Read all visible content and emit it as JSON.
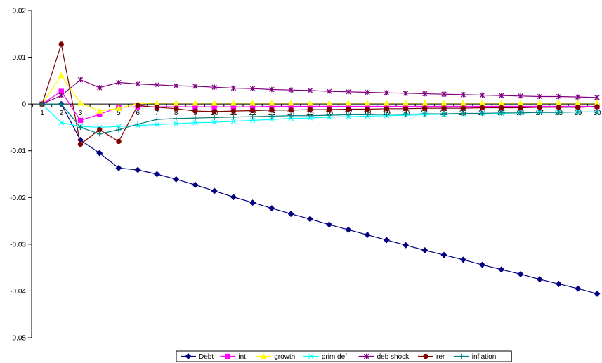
{
  "chart_data": {
    "type": "line",
    "title": "",
    "xlabel": "",
    "ylabel": "",
    "x": [
      1,
      2,
      3,
      4,
      5,
      6,
      7,
      8,
      9,
      10,
      11,
      12,
      13,
      14,
      15,
      16,
      17,
      18,
      19,
      20,
      21,
      22,
      23,
      24,
      25,
      26,
      27,
      28,
      29,
      30
    ],
    "ylim": [
      -0.05,
      0.02
    ],
    "yticks": [
      0.02,
      0.01,
      0,
      -0.01,
      -0.02,
      -0.03,
      -0.04,
      -0.05
    ],
    "ytick_labels": [
      "0.02",
      "0.01",
      "0",
      "-0.01",
      "-0.02",
      "-0.03",
      "-0.04",
      "-0.05"
    ],
    "grid": false,
    "legend_position": "bottom-center",
    "series": [
      {
        "name": "Debt",
        "color": "#000080",
        "marker": "diamond",
        "values": [
          0,
          0,
          -0.0077,
          -0.0105,
          -0.0137,
          -0.0141,
          -0.015,
          -0.0161,
          -0.0173,
          -0.0186,
          -0.0199,
          -0.0211,
          -0.0223,
          -0.0235,
          -0.0246,
          -0.0258,
          -0.0269,
          -0.028,
          -0.0291,
          -0.0302,
          -0.0313,
          -0.0323,
          -0.0333,
          -0.0344,
          -0.0354,
          -0.0364,
          -0.0375,
          -0.0385,
          -0.0395,
          -0.0406
        ]
      },
      {
        "name": "int",
        "color": "#ff00ff",
        "marker": "square",
        "values": [
          0,
          0.0027,
          -0.0035,
          -0.0022,
          -0.0007,
          -0.0006,
          -0.0006,
          -0.0006,
          -0.0006,
          -0.0006,
          -0.0006,
          -0.0006,
          -0.0005,
          -0.0005,
          -0.0005,
          -0.0005,
          -0.0005,
          -0.0005,
          -0.0005,
          -0.0005,
          -0.0005,
          -0.0005,
          -0.0005,
          -0.0005,
          -0.0005,
          -0.0005,
          -0.0005,
          -0.0005,
          -0.0005,
          -0.0005
        ]
      },
      {
        "name": "growth",
        "color": "#ffff00",
        "marker": "triangle",
        "values": [
          0,
          0.0061,
          0.0002,
          -0.0015,
          -0.0009,
          0.0001,
          0.0002,
          0.0002,
          0.0002,
          0.0002,
          0.0002,
          0.0002,
          0.0002,
          0.0002,
          0.0002,
          0.0002,
          0.0002,
          0.0002,
          0.0002,
          0.0002,
          0.0002,
          0.0002,
          0.0002,
          0.0002,
          0.0002,
          0.0002,
          0.0002,
          0.0002,
          0.0002,
          0.0002
        ]
      },
      {
        "name": "prim def",
        "color": "#00ffff",
        "marker": "x",
        "values": [
          0,
          -0.004,
          -0.0048,
          -0.005,
          -0.0048,
          -0.0046,
          -0.0044,
          -0.0042,
          -0.004,
          -0.0039,
          -0.0037,
          -0.0035,
          -0.0033,
          -0.0031,
          -0.003,
          -0.0028,
          -0.0027,
          -0.0026,
          -0.0025,
          -0.0024,
          -0.0023,
          -0.0022,
          -0.0021,
          -0.002,
          -0.002,
          -0.0019,
          -0.0018,
          -0.0018,
          -0.0017,
          -0.0017
        ]
      },
      {
        "name": "deb shock",
        "color": "#800080",
        "marker": "star",
        "values": [
          0,
          0.0018,
          0.0052,
          0.0035,
          0.0046,
          0.0043,
          0.0041,
          0.0039,
          0.0038,
          0.0036,
          0.0034,
          0.0033,
          0.0031,
          0.003,
          0.0029,
          0.0027,
          0.0026,
          0.0025,
          0.0024,
          0.0023,
          0.0022,
          0.0021,
          0.002,
          0.0019,
          0.0018,
          0.0017,
          0.0016,
          0.0016,
          0.0015,
          0.0014
        ]
      },
      {
        "name": "rer",
        "color": "#800000",
        "marker": "circle",
        "values": [
          0,
          0.0128,
          -0.0086,
          -0.0055,
          -0.008,
          -0.0003,
          -0.0007,
          -0.001,
          -0.0015,
          -0.0016,
          -0.0015,
          -0.0014,
          -0.0013,
          -0.0013,
          -0.0012,
          -0.0012,
          -0.0011,
          -0.0011,
          -0.001,
          -0.001,
          -0.0009,
          -0.0009,
          -0.0009,
          -0.0008,
          -0.0008,
          -0.0008,
          -0.0007,
          -0.0007,
          -0.0007,
          -0.0006
        ]
      },
      {
        "name": "inflation",
        "color": "#008080",
        "marker": "plus",
        "values": [
          0,
          0,
          -0.005,
          -0.0064,
          -0.0055,
          -0.0043,
          -0.0033,
          -0.0031,
          -0.003,
          -0.0029,
          -0.0028,
          -0.0027,
          -0.0026,
          -0.0025,
          -0.0025,
          -0.0024,
          -0.0023,
          -0.0023,
          -0.0022,
          -0.0022,
          -0.0021,
          -0.0021,
          -0.002,
          -0.002,
          -0.0019,
          -0.0019,
          -0.0018,
          -0.0018,
          -0.0017,
          -0.0017
        ]
      }
    ]
  }
}
